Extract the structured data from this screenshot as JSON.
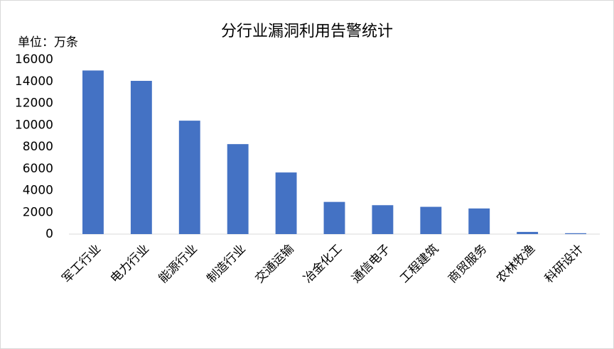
{
  "chart_data": {
    "type": "bar",
    "title": "分行业漏洞利用告警统计",
    "y_unit_label": "单位：万条",
    "categories": [
      "军工行业",
      "电力行业",
      "能源行业",
      "制造行业",
      "交通运输",
      "冶金化工",
      "通信电子",
      "工程建筑",
      "商贸服务",
      "农林牧渔",
      "科研设计"
    ],
    "values": [
      15000,
      14050,
      10400,
      8250,
      5650,
      2950,
      2650,
      2500,
      2350,
      200,
      80
    ],
    "color": "#4472c4",
    "ylim": [
      0,
      16000
    ],
    "yticks": [
      0,
      2000,
      4000,
      6000,
      8000,
      10000,
      12000,
      14000,
      16000
    ],
    "grid": false
  }
}
